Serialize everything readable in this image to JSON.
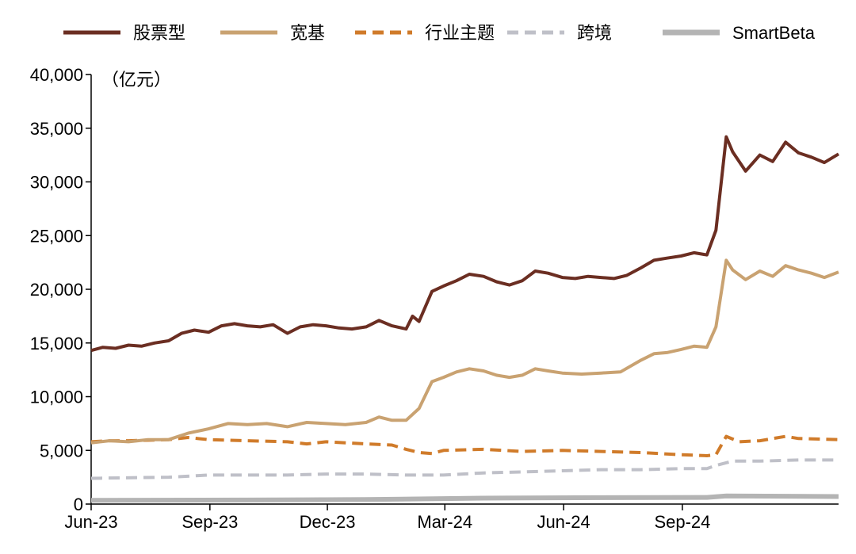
{
  "chart_data": {
    "type": "line",
    "unit_label": "（亿元）",
    "x_tick_labels": [
      "Jun-23",
      "Sep-23",
      "Dec-23",
      "Mar-24",
      "Jun-24",
      "Sep-24"
    ],
    "x_tick_dates": [
      "2023-06-01",
      "2023-09-01",
      "2023-12-01",
      "2024-03-01",
      "2024-06-01",
      "2024-09-01"
    ],
    "x_range": [
      "2023-06-01",
      "2024-12-31"
    ],
    "y_range": [
      0,
      40000
    ],
    "y_ticks": [
      0,
      5000,
      10000,
      15000,
      20000,
      25000,
      30000,
      35000,
      40000
    ],
    "y_tick_labels": [
      "0",
      "5,000",
      "10,000",
      "15,000",
      "20,000",
      "25,000",
      "30,000",
      "35,000",
      "40,000"
    ],
    "legend_position": "top",
    "grid": false,
    "series": [
      {
        "name": "股票型",
        "color": "#6b2e22",
        "style": "solid",
        "points": [
          [
            "2023-06-01",
            14300
          ],
          [
            "2023-06-10",
            14600
          ],
          [
            "2023-06-20",
            14500
          ],
          [
            "2023-06-30",
            14800
          ],
          [
            "2023-07-10",
            14700
          ],
          [
            "2023-07-20",
            15000
          ],
          [
            "2023-07-31",
            15200
          ],
          [
            "2023-08-10",
            15900
          ],
          [
            "2023-08-20",
            16200
          ],
          [
            "2023-08-31",
            16000
          ],
          [
            "2023-09-10",
            16600
          ],
          [
            "2023-09-20",
            16800
          ],
          [
            "2023-09-30",
            16600
          ],
          [
            "2023-10-10",
            16500
          ],
          [
            "2023-10-20",
            16700
          ],
          [
            "2023-10-31",
            15900
          ],
          [
            "2023-11-10",
            16500
          ],
          [
            "2023-11-20",
            16700
          ],
          [
            "2023-11-30",
            16600
          ],
          [
            "2023-12-10",
            16400
          ],
          [
            "2023-12-20",
            16300
          ],
          [
            "2023-12-31",
            16500
          ],
          [
            "2024-01-10",
            17100
          ],
          [
            "2024-01-20",
            16600
          ],
          [
            "2024-01-31",
            16300
          ],
          [
            "2024-02-05",
            17500
          ],
          [
            "2024-02-10",
            17000
          ],
          [
            "2024-02-20",
            19800
          ],
          [
            "2024-02-29",
            20300
          ],
          [
            "2024-03-10",
            20800
          ],
          [
            "2024-03-20",
            21400
          ],
          [
            "2024-03-31",
            21200
          ],
          [
            "2024-04-10",
            20700
          ],
          [
            "2024-04-20",
            20400
          ],
          [
            "2024-04-30",
            20800
          ],
          [
            "2024-05-10",
            21700
          ],
          [
            "2024-05-20",
            21500
          ],
          [
            "2024-05-31",
            21100
          ],
          [
            "2024-06-10",
            21000
          ],
          [
            "2024-06-20",
            21200
          ],
          [
            "2024-06-30",
            21100
          ],
          [
            "2024-07-10",
            21000
          ],
          [
            "2024-07-20",
            21300
          ],
          [
            "2024-07-31",
            22000
          ],
          [
            "2024-08-10",
            22700
          ],
          [
            "2024-08-20",
            22900
          ],
          [
            "2024-08-31",
            23100
          ],
          [
            "2024-09-10",
            23400
          ],
          [
            "2024-09-20",
            23200
          ],
          [
            "2024-09-27",
            25500
          ],
          [
            "2024-10-05",
            34200
          ],
          [
            "2024-10-10",
            32800
          ],
          [
            "2024-10-20",
            31000
          ],
          [
            "2024-10-31",
            32500
          ],
          [
            "2024-11-10",
            31900
          ],
          [
            "2024-11-20",
            33700
          ],
          [
            "2024-11-30",
            32700
          ],
          [
            "2024-12-10",
            32300
          ],
          [
            "2024-12-20",
            31800
          ],
          [
            "2024-12-31",
            32600
          ]
        ]
      },
      {
        "name": "宽基",
        "color": "#c9a271",
        "style": "solid",
        "points": [
          [
            "2023-06-01",
            5700
          ],
          [
            "2023-06-15",
            5900
          ],
          [
            "2023-06-30",
            5800
          ],
          [
            "2023-07-15",
            6000
          ],
          [
            "2023-07-31",
            6000
          ],
          [
            "2023-08-15",
            6600
          ],
          [
            "2023-08-31",
            7000
          ],
          [
            "2023-09-15",
            7500
          ],
          [
            "2023-09-30",
            7400
          ],
          [
            "2023-10-15",
            7500
          ],
          [
            "2023-10-31",
            7200
          ],
          [
            "2023-11-15",
            7600
          ],
          [
            "2023-11-30",
            7500
          ],
          [
            "2023-12-15",
            7400
          ],
          [
            "2023-12-31",
            7600
          ],
          [
            "2024-01-10",
            8100
          ],
          [
            "2024-01-20",
            7800
          ],
          [
            "2024-01-31",
            7800
          ],
          [
            "2024-02-10",
            8900
          ],
          [
            "2024-02-20",
            11400
          ],
          [
            "2024-02-29",
            11800
          ],
          [
            "2024-03-10",
            12300
          ],
          [
            "2024-03-20",
            12600
          ],
          [
            "2024-03-31",
            12400
          ],
          [
            "2024-04-10",
            12000
          ],
          [
            "2024-04-20",
            11800
          ],
          [
            "2024-04-30",
            12000
          ],
          [
            "2024-05-10",
            12600
          ],
          [
            "2024-05-20",
            12400
          ],
          [
            "2024-05-31",
            12200
          ],
          [
            "2024-06-15",
            12100
          ],
          [
            "2024-06-30",
            12200
          ],
          [
            "2024-07-15",
            12300
          ],
          [
            "2024-07-31",
            13400
          ],
          [
            "2024-08-10",
            14000
          ],
          [
            "2024-08-20",
            14100
          ],
          [
            "2024-08-31",
            14400
          ],
          [
            "2024-09-10",
            14700
          ],
          [
            "2024-09-20",
            14600
          ],
          [
            "2024-09-27",
            16500
          ],
          [
            "2024-10-05",
            22700
          ],
          [
            "2024-10-10",
            21800
          ],
          [
            "2024-10-20",
            20900
          ],
          [
            "2024-10-31",
            21700
          ],
          [
            "2024-11-10",
            21200
          ],
          [
            "2024-11-20",
            22200
          ],
          [
            "2024-11-30",
            21800
          ],
          [
            "2024-12-10",
            21500
          ],
          [
            "2024-12-20",
            21100
          ],
          [
            "2024-12-31",
            21600
          ]
        ]
      },
      {
        "name": "行业主题",
        "color": "#d07b2a",
        "style": "dashed",
        "points": [
          [
            "2023-06-01",
            5800
          ],
          [
            "2023-06-15",
            5900
          ],
          [
            "2023-06-30",
            5900
          ],
          [
            "2023-07-31",
            6000
          ],
          [
            "2023-08-15",
            6200
          ],
          [
            "2023-08-31",
            6000
          ],
          [
            "2023-09-30",
            5900
          ],
          [
            "2023-10-31",
            5800
          ],
          [
            "2023-11-15",
            5600
          ],
          [
            "2023-11-30",
            5800
          ],
          [
            "2023-12-31",
            5600
          ],
          [
            "2024-01-20",
            5500
          ],
          [
            "2024-01-31",
            5100
          ],
          [
            "2024-02-10",
            4800
          ],
          [
            "2024-02-20",
            4700
          ],
          [
            "2024-02-29",
            5000
          ],
          [
            "2024-03-31",
            5100
          ],
          [
            "2024-04-30",
            4900
          ],
          [
            "2024-05-31",
            5000
          ],
          [
            "2024-06-30",
            4900
          ],
          [
            "2024-07-31",
            4800
          ],
          [
            "2024-08-31",
            4600
          ],
          [
            "2024-09-20",
            4500
          ],
          [
            "2024-09-27",
            4600
          ],
          [
            "2024-10-05",
            6300
          ],
          [
            "2024-10-15",
            5800
          ],
          [
            "2024-10-31",
            5900
          ],
          [
            "2024-11-20",
            6300
          ],
          [
            "2024-11-30",
            6100
          ],
          [
            "2024-12-31",
            6000
          ]
        ]
      },
      {
        "name": "跨境",
        "color": "#bfc0c8",
        "style": "dashed",
        "points": [
          [
            "2023-06-01",
            2400
          ],
          [
            "2023-07-31",
            2500
          ],
          [
            "2023-08-31",
            2700
          ],
          [
            "2023-09-30",
            2700
          ],
          [
            "2023-10-31",
            2700
          ],
          [
            "2023-11-30",
            2800
          ],
          [
            "2023-12-31",
            2800
          ],
          [
            "2024-01-31",
            2700
          ],
          [
            "2024-02-29",
            2700
          ],
          [
            "2024-03-31",
            2900
          ],
          [
            "2024-04-30",
            3000
          ],
          [
            "2024-05-31",
            3100
          ],
          [
            "2024-06-30",
            3200
          ],
          [
            "2024-07-31",
            3200
          ],
          [
            "2024-08-31",
            3300
          ],
          [
            "2024-09-20",
            3300
          ],
          [
            "2024-09-27",
            3600
          ],
          [
            "2024-10-10",
            4000
          ],
          [
            "2024-10-31",
            4000
          ],
          [
            "2024-11-30",
            4100
          ],
          [
            "2024-12-31",
            4100
          ]
        ]
      },
      {
        "name": "SmartBeta",
        "color": "#b4b4b4",
        "style": "solid",
        "points": [
          [
            "2023-06-01",
            350
          ],
          [
            "2023-09-30",
            380
          ],
          [
            "2023-12-31",
            420
          ],
          [
            "2024-03-31",
            550
          ],
          [
            "2024-06-30",
            600
          ],
          [
            "2024-09-20",
            620
          ],
          [
            "2024-10-05",
            750
          ],
          [
            "2024-12-31",
            700
          ]
        ]
      }
    ]
  }
}
